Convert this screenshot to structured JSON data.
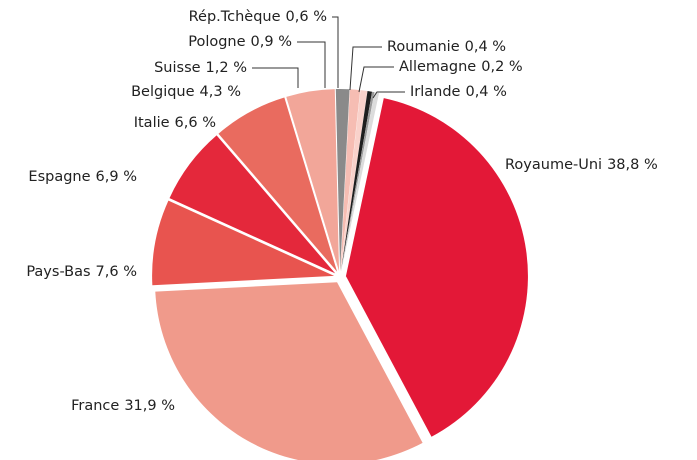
{
  "chart_data": {
    "type": "pie",
    "categories": [
      "Royaume-Uni",
      "France",
      "Pays-Bas",
      "Espagne",
      "Italie",
      "Belgique",
      "Suisse",
      "Pologne",
      "Rép.Tchèque",
      "Roumanie",
      "Allemagne",
      "Irlande"
    ],
    "values": [
      38.8,
      31.9,
      7.6,
      6.9,
      6.6,
      4.3,
      1.2,
      0.9,
      0.6,
      0.4,
      0.2,
      0.4
    ],
    "value_labels": [
      "38,8 %",
      "31,9 %",
      "7,6 %",
      "6,9 %",
      "6,6 %",
      "4,3 %",
      "1,2  %",
      "0,9 %",
      "0,6 %",
      "0,4 %",
      "0,2 %",
      "0,4 %"
    ],
    "colors": [
      "#e31837",
      "#f09a8b",
      "#e8544f",
      "#e4283b",
      "#e96b5f",
      "#f2a699",
      "#8a8a8a",
      "#f6bdb3",
      "#f9d2cb",
      "#1e1e1e",
      "#9a9a9a",
      "#dcdcdc"
    ]
  }
}
